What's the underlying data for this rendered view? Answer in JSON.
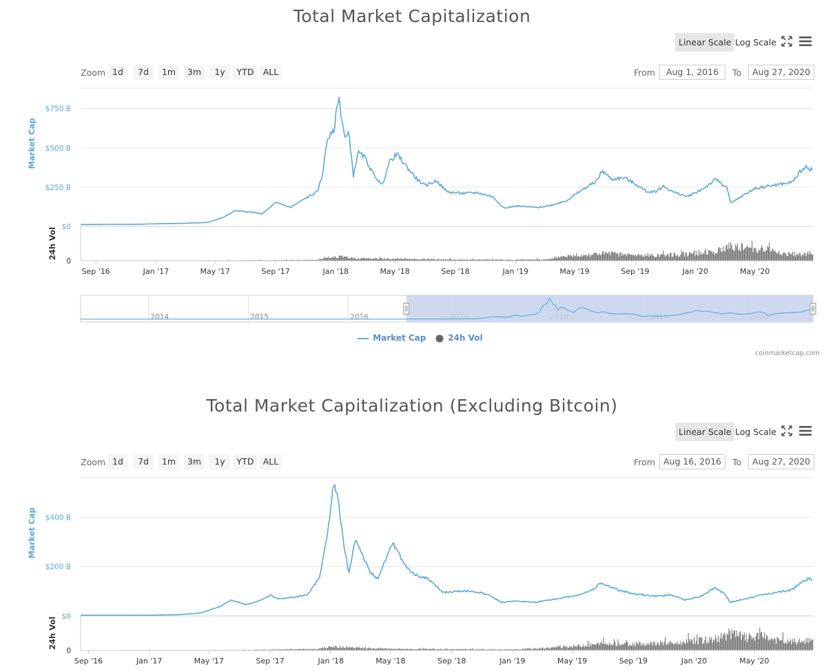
{
  "colors": {
    "line": "#5aa9d6",
    "volume": "#707070",
    "axis_label": "#5aa9d6",
    "grid": "#e6e6e6",
    "navigator_fill": "#c6d2ec"
  },
  "icons": [
    "fullscreen-icon",
    "menu-icon"
  ],
  "charts": [
    {
      "title": "Total Market Capitalization",
      "scale_buttons": {
        "linear": "Linear Scale",
        "log": "Log Scale",
        "active": "linear"
      },
      "zoom": {
        "label": "Zoom",
        "buttons": [
          "1d",
          "7d",
          "1m",
          "3m",
          "1y",
          "YTD",
          "ALL"
        ]
      },
      "range": {
        "from_label": "From",
        "from": "Aug 1, 2016",
        "to_label": "To",
        "to": "Aug 27, 2020"
      },
      "navigator_years": [
        "2014",
        "2015",
        "2016",
        "2017",
        "2018",
        "2019",
        "2020"
      ],
      "legend": [
        "Market Cap",
        "24h Vol"
      ],
      "credit": "coinmarketcap.com"
    },
    {
      "title": "Total Market Capitalization (Excluding Bitcoin)",
      "scale_buttons": {
        "linear": "Linear Scale",
        "log": "Log Scale",
        "active": "linear"
      },
      "zoom": {
        "label": "Zoom",
        "buttons": [
          "1d",
          "7d",
          "1m",
          "3m",
          "1y",
          "YTD",
          "ALL"
        ]
      },
      "range": {
        "from_label": "From",
        "from": "Aug 16, 2016",
        "to_label": "To",
        "to": "Aug 27, 2020"
      }
    }
  ],
  "chart_data": [
    {
      "type": "line",
      "title": "Total Market Capitalization",
      "ylabel": "Market Cap",
      "vol_label": "24h Vol",
      "yticks": [
        "$0",
        "$250 B",
        "$500 B",
        "$750 B"
      ],
      "ytick_values": [
        0,
        250,
        500,
        750
      ],
      "ylim": [
        0,
        880
      ],
      "vol_ticks": [
        "0"
      ],
      "xlim": [
        "2016-08-01",
        "2020-08-27"
      ],
      "xticks": [
        {
          "label": "Sep '16",
          "date": "2016-09-01"
        },
        {
          "label": "Jan '17",
          "date": "2017-01-01"
        },
        {
          "label": "May '17",
          "date": "2017-05-01"
        },
        {
          "label": "Sep '17",
          "date": "2017-09-01"
        },
        {
          "label": "Jan '18",
          "date": "2018-01-01"
        },
        {
          "label": "May '18",
          "date": "2018-05-01"
        },
        {
          "label": "Sep '18",
          "date": "2018-09-01"
        },
        {
          "label": "Jan '19",
          "date": "2019-01-01"
        },
        {
          "label": "May '19",
          "date": "2019-05-01"
        },
        {
          "label": "Sep '19",
          "date": "2019-09-01"
        },
        {
          "label": "Jan '20",
          "date": "2020-01-01"
        },
        {
          "label": "May '20",
          "date": "2020-05-01"
        }
      ],
      "series": [
        {
          "name": "Market Cap",
          "points": [
            [
              "2016-08-01",
              12
            ],
            [
              "2016-12-01",
              14
            ],
            [
              "2017-01-05",
              17
            ],
            [
              "2017-03-01",
              20
            ],
            [
              "2017-04-15",
              25
            ],
            [
              "2017-05-20",
              60
            ],
            [
              "2017-06-10",
              100
            ],
            [
              "2017-07-15",
              90
            ],
            [
              "2017-08-05",
              80
            ],
            [
              "2017-09-01",
              150
            ],
            [
              "2017-09-15",
              140
            ],
            [
              "2017-10-01",
              120
            ],
            [
              "2017-11-01",
              180
            ],
            [
              "2017-11-25",
              220
            ],
            [
              "2017-12-05",
              330
            ],
            [
              "2017-12-15",
              560
            ],
            [
              "2017-12-28",
              600
            ],
            [
              "2018-01-02",
              720
            ],
            [
              "2018-01-07",
              830
            ],
            [
              "2018-01-12",
              710
            ],
            [
              "2018-01-20",
              560
            ],
            [
              "2018-01-28",
              590
            ],
            [
              "2018-02-06",
              320
            ],
            [
              "2018-02-15",
              470
            ],
            [
              "2018-03-01",
              440
            ],
            [
              "2018-03-15",
              350
            ],
            [
              "2018-04-05",
              260
            ],
            [
              "2018-04-20",
              410
            ],
            [
              "2018-05-05",
              460
            ],
            [
              "2018-05-25",
              380
            ],
            [
              "2018-06-15",
              300
            ],
            [
              "2018-07-01",
              260
            ],
            [
              "2018-07-25",
              290
            ],
            [
              "2018-08-15",
              220
            ],
            [
              "2018-09-15",
              210
            ],
            [
              "2018-10-15",
              215
            ],
            [
              "2018-11-15",
              190
            ],
            [
              "2018-12-10",
              115
            ],
            [
              "2019-01-01",
              130
            ],
            [
              "2019-02-15",
              120
            ],
            [
              "2019-03-15",
              135
            ],
            [
              "2019-04-15",
              165
            ],
            [
              "2019-05-15",
              230
            ],
            [
              "2019-06-15",
              290
            ],
            [
              "2019-06-26",
              355
            ],
            [
              "2019-07-15",
              300
            ],
            [
              "2019-08-10",
              310
            ],
            [
              "2019-09-01",
              270
            ],
            [
              "2019-09-25",
              220
            ],
            [
              "2019-10-15",
              225
            ],
            [
              "2019-10-28",
              255
            ],
            [
              "2019-11-20",
              215
            ],
            [
              "2019-12-15",
              190
            ],
            [
              "2020-01-15",
              235
            ],
            [
              "2020-02-12",
              300
            ],
            [
              "2020-03-05",
              250
            ],
            [
              "2020-03-13",
              145
            ],
            [
              "2020-04-01",
              185
            ],
            [
              "2020-04-30",
              240
            ],
            [
              "2020-05-15",
              250
            ],
            [
              "2020-06-15",
              265
            ],
            [
              "2020-07-15",
              280
            ],
            [
              "2020-08-01",
              350
            ],
            [
              "2020-08-15",
              380
            ],
            [
              "2020-08-27",
              355
            ]
          ]
        },
        {
          "name": "24h Vol",
          "type": "column",
          "vol_max_fraction": 0.85,
          "envelope": [
            [
              "2016-08-01",
              0.0
            ],
            [
              "2017-05-01",
              0.02
            ],
            [
              "2017-11-20",
              0.04
            ],
            [
              "2017-12-15",
              0.15
            ],
            [
              "2018-01-05",
              0.2
            ],
            [
              "2018-02-10",
              0.12
            ],
            [
              "2018-05-01",
              0.1
            ],
            [
              "2018-09-01",
              0.06
            ],
            [
              "2019-01-01",
              0.05
            ],
            [
              "2019-03-15",
              0.08
            ],
            [
              "2019-04-01",
              0.2
            ],
            [
              "2019-06-30",
              0.35
            ],
            [
              "2019-09-01",
              0.25
            ],
            [
              "2019-12-01",
              0.3
            ],
            [
              "2020-02-15",
              0.45
            ],
            [
              "2020-03-15",
              0.75
            ],
            [
              "2020-04-15",
              0.55
            ],
            [
              "2020-05-15",
              0.6
            ],
            [
              "2020-07-01",
              0.3
            ],
            [
              "2020-08-27",
              0.35
            ]
          ]
        }
      ]
    },
    {
      "type": "line",
      "title": "Total Market Capitalization (Excluding Bitcoin)",
      "ylabel": "Market Cap",
      "vol_label": "24h Vol",
      "yticks": [
        "$0",
        "$200 B",
        "$400 B"
      ],
      "ytick_values": [
        0,
        200,
        400
      ],
      "ylim": [
        0,
        560
      ],
      "vol_ticks": [
        "0"
      ],
      "xlim": [
        "2016-08-16",
        "2020-08-27"
      ],
      "xticks": [
        {
          "label": "Sep '16",
          "date": "2016-09-01"
        },
        {
          "label": "Jan '17",
          "date": "2017-01-01"
        },
        {
          "label": "May '17",
          "date": "2017-05-01"
        },
        {
          "label": "Sep '17",
          "date": "2017-09-01"
        },
        {
          "label": "Jan '18",
          "date": "2018-01-01"
        },
        {
          "label": "May '18",
          "date": "2018-05-01"
        },
        {
          "label": "Sep '18",
          "date": "2018-09-01"
        },
        {
          "label": "Jan '19",
          "date": "2019-01-01"
        },
        {
          "label": "May '19",
          "date": "2019-05-01"
        },
        {
          "label": "Sep '19",
          "date": "2019-09-01"
        },
        {
          "label": "Jan '20",
          "date": "2020-01-01"
        },
        {
          "label": "May '20",
          "date": "2020-05-01"
        }
      ],
      "series": [
        {
          "name": "Market Cap",
          "points": [
            [
              "2016-08-16",
              3
            ],
            [
              "2017-01-01",
              3
            ],
            [
              "2017-03-01",
              5
            ],
            [
              "2017-04-15",
              12
            ],
            [
              "2017-05-25",
              40
            ],
            [
              "2017-06-15",
              65
            ],
            [
              "2017-07-15",
              45
            ],
            [
              "2017-08-15",
              65
            ],
            [
              "2017-09-01",
              85
            ],
            [
              "2017-09-15",
              70
            ],
            [
              "2017-10-15",
              75
            ],
            [
              "2017-11-15",
              85
            ],
            [
              "2017-12-10",
              160
            ],
            [
              "2017-12-25",
              340
            ],
            [
              "2018-01-03",
              470
            ],
            [
              "2018-01-08",
              550
            ],
            [
              "2018-01-15",
              470
            ],
            [
              "2018-01-25",
              320
            ],
            [
              "2018-02-06",
              170
            ],
            [
              "2018-02-20",
              320
            ],
            [
              "2018-03-05",
              250
            ],
            [
              "2018-03-20",
              180
            ],
            [
              "2018-04-05",
              150
            ],
            [
              "2018-04-25",
              250
            ],
            [
              "2018-05-05",
              300
            ],
            [
              "2018-05-25",
              220
            ],
            [
              "2018-06-15",
              170
            ],
            [
              "2018-07-15",
              150
            ],
            [
              "2018-08-15",
              95
            ],
            [
              "2018-09-15",
              100
            ],
            [
              "2018-10-15",
              100
            ],
            [
              "2018-11-15",
              85
            ],
            [
              "2018-12-10",
              55
            ],
            [
              "2019-01-01",
              60
            ],
            [
              "2019-02-15",
              55
            ],
            [
              "2019-04-01",
              70
            ],
            [
              "2019-05-15",
              85
            ],
            [
              "2019-06-15",
              110
            ],
            [
              "2019-06-26",
              135
            ],
            [
              "2019-08-01",
              105
            ],
            [
              "2019-09-01",
              90
            ],
            [
              "2019-10-15",
              80
            ],
            [
              "2019-11-15",
              85
            ],
            [
              "2019-12-15",
              65
            ],
            [
              "2020-01-15",
              80
            ],
            [
              "2020-02-12",
              115
            ],
            [
              "2020-03-05",
              85
            ],
            [
              "2020-03-13",
              55
            ],
            [
              "2020-04-15",
              70
            ],
            [
              "2020-05-15",
              85
            ],
            [
              "2020-06-15",
              95
            ],
            [
              "2020-07-15",
              105
            ],
            [
              "2020-08-05",
              140
            ],
            [
              "2020-08-18",
              150
            ],
            [
              "2020-08-27",
              145
            ]
          ]
        },
        {
          "name": "24h Vol",
          "type": "column",
          "vol_max_fraction": 0.85,
          "envelope": [
            [
              "2016-08-16",
              0.0
            ],
            [
              "2017-05-01",
              0.01
            ],
            [
              "2017-12-01",
              0.06
            ],
            [
              "2018-01-05",
              0.18
            ],
            [
              "2018-02-10",
              0.12
            ],
            [
              "2018-06-01",
              0.07
            ],
            [
              "2018-10-01",
              0.05
            ],
            [
              "2019-01-01",
              0.04
            ],
            [
              "2019-03-15",
              0.12
            ],
            [
              "2019-06-30",
              0.3
            ],
            [
              "2019-09-01",
              0.3
            ],
            [
              "2019-12-01",
              0.35
            ],
            [
              "2020-02-15",
              0.55
            ],
            [
              "2020-03-15",
              0.8
            ],
            [
              "2020-04-15",
              0.6
            ],
            [
              "2020-05-15",
              0.65
            ],
            [
              "2020-07-01",
              0.4
            ],
            [
              "2020-08-27",
              0.45
            ]
          ]
        }
      ]
    }
  ]
}
